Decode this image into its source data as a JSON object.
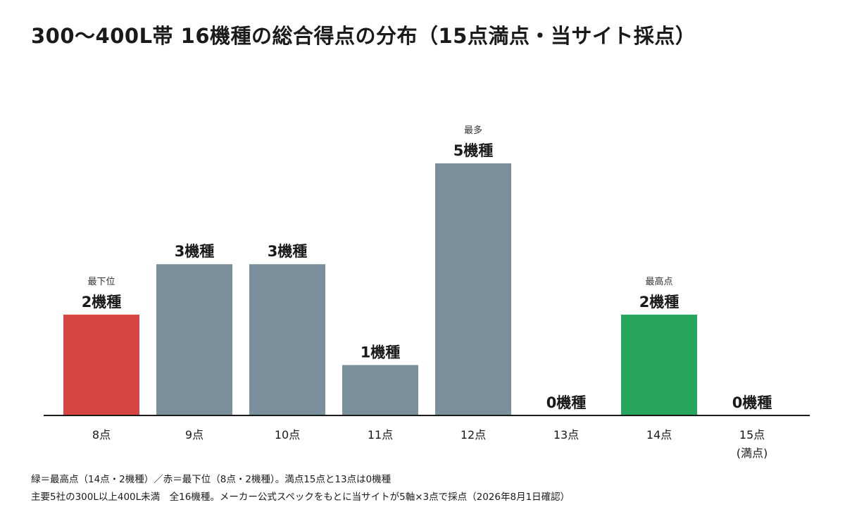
{
  "title": "300〜400L帯 16機種の総合得点の分布（15点満点・当サイト採点）",
  "colors": {
    "lowest": "#d64541",
    "default": "#7a909c",
    "highest": "#27a55d",
    "axis": "#1a1a1a"
  },
  "chart_data": {
    "type": "bar",
    "title": "300〜400L帯 16機種の総合得点の分布（15点満点・当サイト採点）",
    "categories": [
      "8点",
      "9点",
      "10点",
      "11点",
      "12点",
      "13点",
      "14点",
      "15点\n(満点)"
    ],
    "values": [
      2,
      3,
      3,
      1,
      5,
      0,
      2,
      0
    ],
    "value_labels": [
      "2機種",
      "3機種",
      "3機種",
      "1機種",
      "5機種",
      "0機種",
      "2機種",
      "0機種"
    ],
    "annotations": [
      "最下位",
      "",
      "",
      "",
      "最多",
      "",
      "最高点",
      ""
    ],
    "bar_colors": [
      "lowest",
      "default",
      "default",
      "default",
      "default",
      "default",
      "highest",
      "default"
    ],
    "ylim": [
      0,
      5
    ],
    "grid": false,
    "legend": "none"
  },
  "footnotes": [
    "緑＝最高点（14点・2機種）／赤＝最下位（8点・2機種）。満点15点と13点は0機種",
    "主要5社の300L以上400L未満　全16機種。メーカー公式スペックをもとに当サイトが5軸×3点で採点（2026年8月1日確認）"
  ]
}
